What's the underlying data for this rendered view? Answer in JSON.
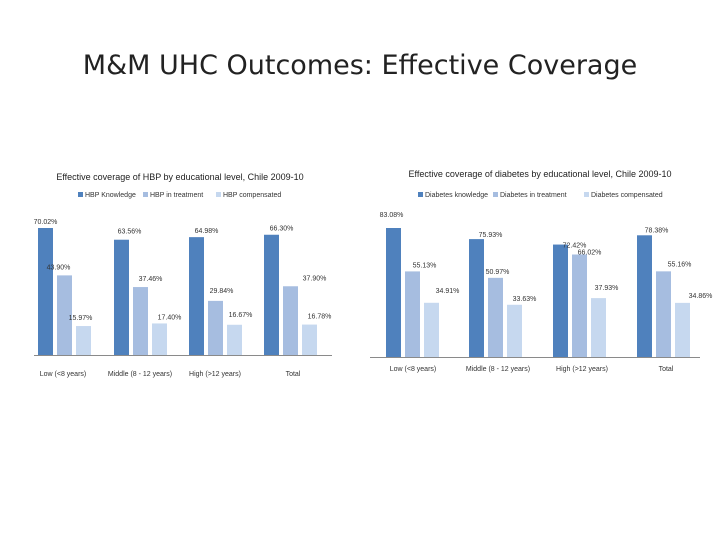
{
  "slide": {
    "title": "M&M UHC Outcomes: Effective Coverage"
  },
  "colors": {
    "knowledge": "#4f81bd",
    "treatment": "#a6bde0",
    "compensated": "#c6d8ef"
  },
  "chart_data": [
    {
      "type": "bar",
      "title": "Effective coverage of HBP by educational level, Chile 2009-10",
      "categories": [
        "Low (<8 years)",
        "Middle (8 - 12 years)",
        "High (>12 years)",
        "Total"
      ],
      "series": [
        {
          "name": "HBP Knowledge",
          "values": [
            70.02,
            63.56,
            64.98,
            66.3
          ],
          "labels": [
            "70.02%",
            "63.56%",
            "64.98%",
            "66.30%"
          ]
        },
        {
          "name": "HBP in treatment",
          "values": [
            43.9,
            37.46,
            29.84,
            37.9
          ],
          "labels": [
            "43.90%",
            "37.46%",
            "29.84%",
            "37.90%"
          ]
        },
        {
          "name": "HBP compensated",
          "values": [
            15.97,
            17.4,
            16.67,
            16.78
          ],
          "labels": [
            "15.97%",
            "17.40%",
            "16.67%",
            "16.78%"
          ]
        }
      ],
      "xlabel": "",
      "ylabel": "",
      "ylim": [
        0,
        70.02
      ],
      "grid": false,
      "legend": "top"
    },
    {
      "type": "bar",
      "title": "Effective coverage of diabetes by educational level, Chile 2009-10",
      "categories": [
        "Low (<8 years)",
        "Middle (8 - 12 years)",
        "High (>12 years)",
        "Total"
      ],
      "series": [
        {
          "name": "Diabetes knowledge",
          "values": [
            83.08,
            75.93,
            72.42,
            78.38
          ],
          "labels": [
            "83.08%",
            "75.93%",
            "72.42%",
            "78.38%"
          ]
        },
        {
          "name": "Diabetes in treatment",
          "values": [
            55.13,
            50.97,
            66.02,
            55.16
          ],
          "labels": [
            "55.13%",
            "50.97%",
            "66.02%",
            "55.16%"
          ]
        },
        {
          "name": "Diabetes compensated",
          "values": [
            34.91,
            33.63,
            37.93,
            34.86
          ],
          "labels": [
            "34.91%",
            "33.63%",
            "37.93%",
            "34.86%"
          ]
        }
      ],
      "xlabel": "",
      "ylabel": "",
      "ylim": [
        0,
        83.08
      ],
      "grid": false,
      "legend": "top"
    }
  ]
}
